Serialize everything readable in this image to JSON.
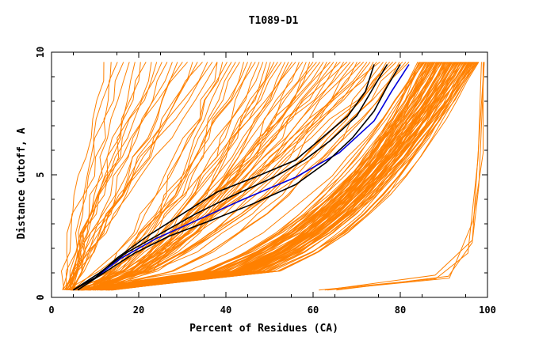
{
  "chart_data": {
    "type": "line",
    "title": "T1089-D1",
    "xlabel": "Percent of Residues (CA)",
    "ylabel": "Distance Cutoff, A",
    "xlim": [
      0,
      100
    ],
    "ylim": [
      0,
      10
    ],
    "x_ticks": [
      0,
      20,
      40,
      60,
      80,
      100
    ],
    "x_tick_labels": [
      "0",
      "20",
      "40",
      "60",
      "80",
      "100"
    ],
    "y_ticks": [
      0,
      5,
      10
    ],
    "y_tick_labels": [
      "0",
      "5",
      "10"
    ],
    "grid": false,
    "legend": "none",
    "colors": {
      "many_models": "#ff8000",
      "highlight_blue": "#0000dd",
      "highlight_black": "#000000",
      "axis": "#000000"
    },
    "series": [
      {
        "color": "#0000dd",
        "points": [
          [
            5,
            0.3
          ],
          [
            10,
            0.8
          ],
          [
            16,
            1.6
          ],
          [
            24,
            2.4
          ],
          [
            34,
            3.2
          ],
          [
            44,
            4.0
          ],
          [
            56,
            4.9
          ],
          [
            66,
            5.9
          ],
          [
            74,
            7.2
          ],
          [
            78,
            8.4
          ],
          [
            82,
            9.5
          ]
        ]
      },
      {
        "color": "#000000",
        "points": [
          [
            5,
            0.3
          ],
          [
            10,
            0.8
          ],
          [
            15,
            1.6
          ],
          [
            22,
            2.5
          ],
          [
            30,
            3.4
          ],
          [
            38,
            4.3
          ],
          [
            48,
            5.0
          ],
          [
            56,
            5.6
          ],
          [
            62,
            6.5
          ],
          [
            68,
            7.4
          ],
          [
            72,
            8.4
          ],
          [
            74,
            9.5
          ]
        ]
      },
      {
        "color": "#000000",
        "points": [
          [
            5,
            0.3
          ],
          [
            11,
            1.0
          ],
          [
            17,
            1.8
          ],
          [
            25,
            2.6
          ],
          [
            33,
            3.4
          ],
          [
            41,
            4.1
          ],
          [
            51,
            4.9
          ],
          [
            58,
            5.6
          ],
          [
            64,
            6.4
          ],
          [
            70,
            7.4
          ],
          [
            74,
            8.6
          ],
          [
            77,
            9.5
          ]
        ]
      },
      {
        "color": "#000000",
        "points": [
          [
            6,
            0.3
          ],
          [
            12,
            1.0
          ],
          [
            19,
            1.8
          ],
          [
            27,
            2.5
          ],
          [
            36,
            3.1
          ],
          [
            46,
            3.8
          ],
          [
            56,
            4.6
          ],
          [
            63,
            5.5
          ],
          [
            69,
            6.5
          ],
          [
            74,
            7.6
          ],
          [
            77,
            8.6
          ],
          [
            80,
            9.5
          ]
        ]
      }
    ],
    "orange_families": [
      {
        "name": "steep",
        "count": 22,
        "x_at_0": [
          2.5,
          5
        ],
        "x_at_top": [
          12,
          38
        ],
        "y_top": 9.6
      },
      {
        "name": "middle",
        "count": 55,
        "x_at_0": [
          3,
          12
        ],
        "x_at_top": [
          38,
          82
        ],
        "y_top": 9.6
      },
      {
        "name": "dense",
        "count": 85,
        "x_at_0": [
          4,
          14
        ],
        "x_at_top": [
          84,
          98
        ],
        "y_top": 9.6
      },
      {
        "name": "outlier",
        "count": 4,
        "x_start": [
          60,
          66
        ],
        "y_top": 9.6
      }
    ]
  }
}
